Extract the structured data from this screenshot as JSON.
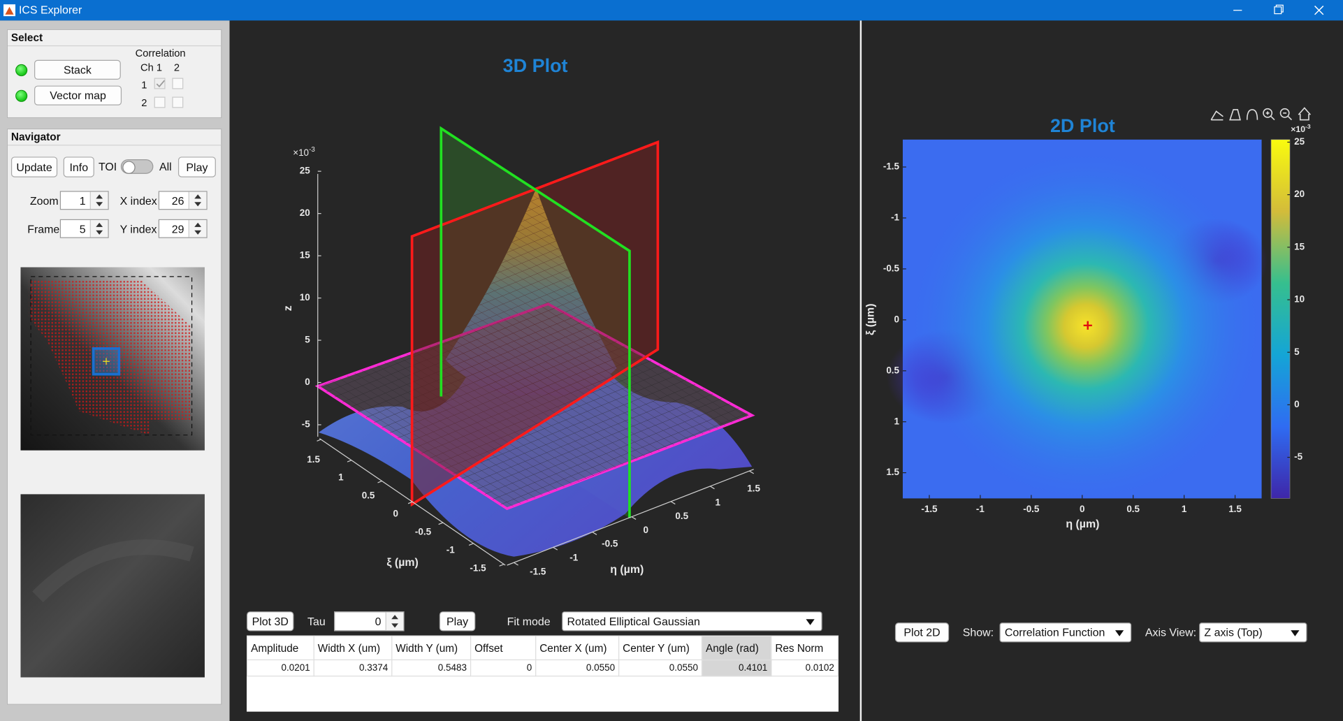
{
  "window": {
    "title": "ICS Explorer"
  },
  "select": {
    "title": "Select",
    "stack": "Stack",
    "vector_map": "Vector map",
    "correlation": "Correlation",
    "ch_label": "Ch 1",
    "col2": "2",
    "row1": "1",
    "row2": "2"
  },
  "navigator": {
    "title": "Navigator",
    "update": "Update",
    "info": "Info",
    "toi": "TOI",
    "all": "All",
    "play": "Play",
    "zoom_label": "Zoom",
    "zoom": 1,
    "x_index_label": "X index",
    "x_index": 26,
    "frame_label": "Frame",
    "frame": 5,
    "y_index_label": "Y index",
    "y_index": 29
  },
  "plot3d": {
    "title": "3D Plot",
    "multiplier_base": "×10",
    "multiplier_exp": "-3",
    "z_label": "z",
    "zticks": [
      -5,
      0,
      5,
      10,
      15,
      20,
      25
    ],
    "xi_label": "ξ (µm)",
    "xi_ticks": [
      -1.5,
      -1,
      -0.5,
      0,
      0.5,
      1,
      1.5
    ],
    "eta_label": "η (µm)",
    "eta_ticks": [
      -1.5,
      -1,
      -0.5,
      0,
      0.5,
      1,
      1.5
    ]
  },
  "controls3d": {
    "plot": "Plot 3D",
    "tau_label": "Tau",
    "tau": 0,
    "play": "Play",
    "fit_mode_label": "Fit mode",
    "fit_mode": "Rotated Elliptical Gaussian"
  },
  "fit_table": {
    "headers": [
      "Amplitude",
      "Width X (um)",
      "Width Y (um)",
      "Offset",
      "Center X (um)",
      "Center Y (um)",
      "Angle (rad)",
      "Res Norm"
    ],
    "rows": [
      [
        "0.0201",
        "0.3374",
        "0.5483",
        "0",
        "0.0550",
        "0.0550",
        "0.4101",
        "0.0102"
      ]
    ]
  },
  "plot2d": {
    "title": "2D Plot",
    "x_label": "η (µm)",
    "y_label": "ξ (µm)",
    "xticks": [
      -1.5,
      -1,
      -0.5,
      0,
      0.5,
      1,
      1.5
    ],
    "yticks": [
      -1.5,
      -1,
      -0.5,
      0,
      0.5,
      1,
      1.5
    ],
    "colorbar_ticks": [
      -5,
      0,
      5,
      10,
      15,
      20,
      25
    ],
    "multiplier_base": "×10",
    "multiplier_exp": "-3"
  },
  "controls2d": {
    "plot": "Plot 2D",
    "show_label": "Show:",
    "show": "Correlation Function",
    "axis_view_label": "Axis View:",
    "axis_view": "Z axis (Top)"
  }
}
